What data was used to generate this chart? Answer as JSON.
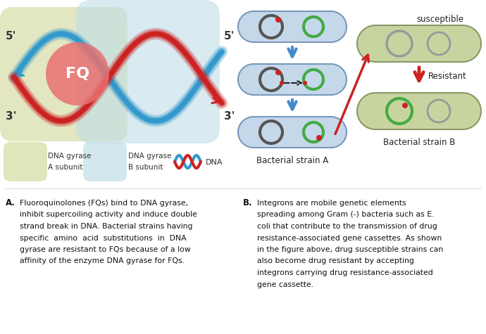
{
  "bg_color": "#ffffff",
  "fig_width": 6.9,
  "fig_height": 4.75,
  "dpi": 100,
  "text_A_label": "A.",
  "text_A_lines": [
    "Fluoroquinolones (FQs) bind to DNA gyrase,",
    "inhibit supercoiling activity and induce double",
    "strand break in DNA. Bacterial strains having",
    "specific  amino  acid  substitutions  in  DNA",
    "gyrase are resistant to FQs because of a low",
    "affinity of the enzyme DNA gyrase for FQs."
  ],
  "text_B_label": "B.",
  "text_B_lines": [
    "Integrons are mobile genetic elements",
    "spreading among Gram (-) bacteria such as E.",
    "coli that contribute to the transmission of drug",
    "resistance-associated gene cassettes. As shown",
    "in the figure above, drug susceptible strains can",
    "also become drug resistant by accepting",
    "integrons carrying drug resistance-associated",
    "gene cassette."
  ],
  "label_5prime_left": "5'",
  "label_3prime_left": "3'",
  "label_5prime_right": "5'",
  "label_3prime_right": "3'",
  "fq_label": "FQ",
  "bacterial_strain_a_label": "Bacterial strain A",
  "bacterial_strain_b_label": "Bacterial strain B",
  "susceptible_label": "susceptible",
  "resistant_label": "Resistant",
  "dna_red_color": "#cc2222",
  "dna_blue_color": "#3399cc",
  "gyrase_a_color": "#d4dba0",
  "gyrase_b_color": "#c0dde8",
  "fq_circle_color": "#e87070",
  "capsule_blue_color": "#c5d8ea",
  "capsule_blue_edge": "#7799bb",
  "capsule_green_color": "#c8d4a0",
  "capsule_green_edge": "#889966",
  "arrow_blue": "#4488cc",
  "arrow_red": "#cc2222",
  "circle_dark": "#555555",
  "circle_green": "#44aa44",
  "circle_red": "#cc2222",
  "circle_gray": "#999999",
  "legend_bg": "#f0f4f0"
}
